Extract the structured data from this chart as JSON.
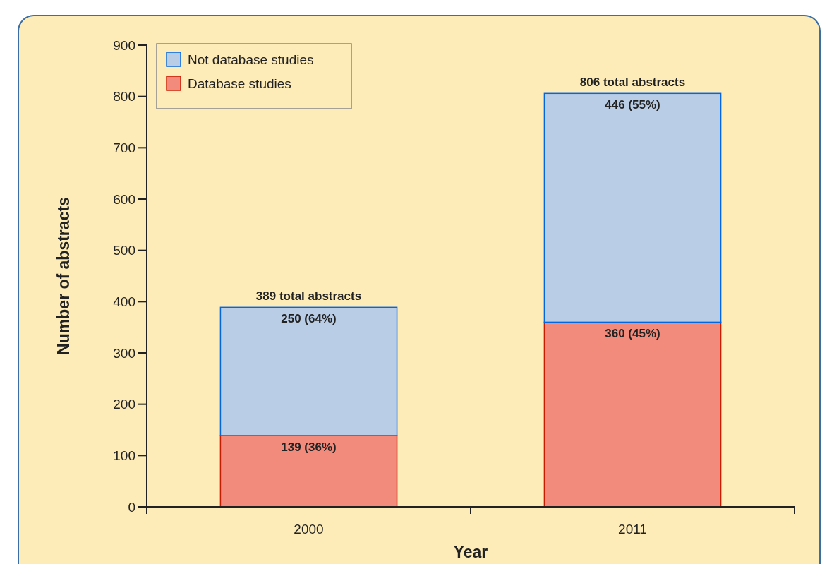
{
  "chart_data": {
    "type": "bar",
    "stacked": true,
    "xlabel": "Year",
    "ylabel": "Number of abstracts",
    "categories": [
      "2000",
      "2011"
    ],
    "series": [
      {
        "name": "Database studies",
        "color": "#f28b7b",
        "values": [
          139,
          360
        ],
        "value_labels": [
          "139 (36%)",
          "360 (45%)"
        ]
      },
      {
        "name": "Not database studies",
        "color": "#b9cde6",
        "values": [
          250,
          446
        ],
        "value_labels": [
          "250 (64%)",
          "446 (55%)"
        ]
      }
    ],
    "totals": [
      "389 total abstracts",
      "806 total abstracts"
    ],
    "ylim": [
      0,
      900
    ],
    "yticks": [
      0,
      100,
      200,
      300,
      400,
      500,
      600,
      700,
      800,
      900
    ],
    "legend": "top left",
    "grid": false
  }
}
